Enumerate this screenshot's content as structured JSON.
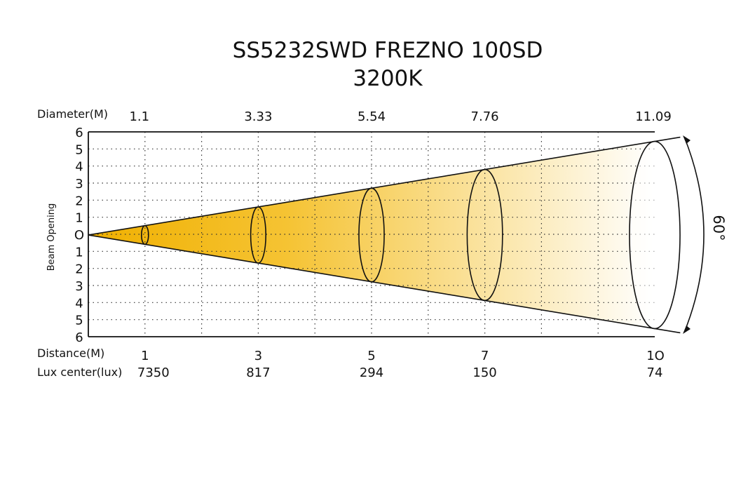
{
  "title": {
    "line1": "SS5232SWD FREZNO 100SD",
    "line2": "3200K"
  },
  "labels": {
    "diameter": "Diameter(M)",
    "distance": "Distance(M)",
    "lux": "Lux center(lux)",
    "beam_opening": "Beam Opening",
    "angle": "60°"
  },
  "y_ticks": [
    "6",
    "5",
    "4",
    "3",
    "2",
    "1",
    "O",
    "1",
    "2",
    "3",
    "4",
    "5",
    "6"
  ],
  "points": [
    {
      "distance": "1",
      "diameter": "1.1",
      "lux": "7350"
    },
    {
      "distance": "3",
      "diameter": "3.33",
      "lux": "817"
    },
    {
      "distance": "5",
      "diameter": "5.54",
      "lux": "294"
    },
    {
      "distance": "7",
      "diameter": "7.76",
      "lux": "150"
    },
    {
      "distance": "1O",
      "diameter": "11.09",
      "lux": "74"
    }
  ],
  "distance_values": [
    1,
    3,
    5,
    7,
    10
  ],
  "diameter_values": [
    1.1,
    3.33,
    5.54,
    7.76,
    11.09
  ],
  "beam_angle_deg": 60,
  "x_range_m": [
    0,
    10
  ],
  "y_range_m": [
    -6,
    6
  ],
  "colors": {
    "beam_start": "#F0B000",
    "beam_end": "#FFFFFF",
    "line": "#111111",
    "grid": "#333333"
  }
}
